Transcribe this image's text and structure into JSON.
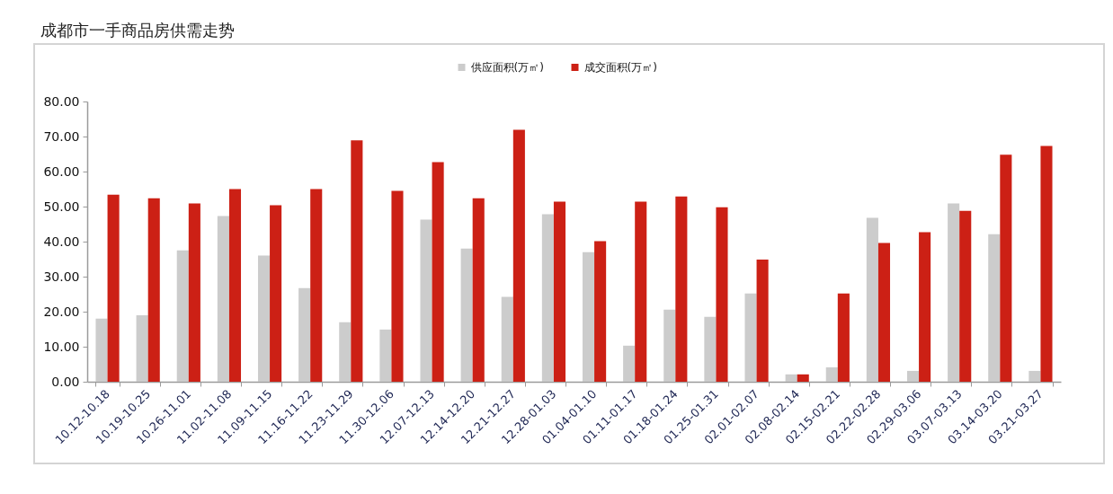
{
  "chart_data": {
    "type": "bar",
    "title": "成都市一手商品房供需走势",
    "categories": [
      "10.12-10.18",
      "10.19-10.25",
      "10.26-11.01",
      "11.02-11.08",
      "11.09-11.15",
      "11.16-11.22",
      "11.23-11.29",
      "11.30-12.06",
      "12.07-12.13",
      "12.14-12.20",
      "12.21-12.27",
      "12.28-01.03",
      "01.04-01.10",
      "01.11-01.17",
      "01.18-01.24",
      "01.25-01.31",
      "02.01-02.07",
      "02.08-02.14",
      "02.15-02.21",
      "02.22-02.28",
      "02.29-03.06",
      "03.07-03.13",
      "03.14-03.20",
      "03.21-03.27"
    ],
    "series": [
      {
        "name": "供应面积(万㎡)",
        "color": "#cccccc",
        "values": [
          18.0,
          19.0,
          37.5,
          47.3,
          36.0,
          26.7,
          17.0,
          14.9,
          46.3,
          38.0,
          24.2,
          47.8,
          37.0,
          10.3,
          20.6,
          18.5,
          25.2,
          2.1,
          4.1,
          46.8,
          3.1,
          50.9,
          42.1,
          3.1
        ]
      },
      {
        "name": "成交面积(万㎡)",
        "color": "#cc2015",
        "values": [
          53.4,
          52.4,
          50.9,
          55.0,
          50.4,
          55.0,
          68.9,
          54.5,
          62.7,
          52.4,
          71.9,
          51.4,
          40.1,
          51.4,
          52.9,
          49.8,
          34.9,
          2.1,
          25.2,
          39.6,
          42.7,
          48.8,
          64.8,
          67.3
        ]
      }
    ],
    "ylim": [
      0,
      80
    ],
    "yticks": [
      {
        "value": 0,
        "label": "0.00"
      },
      {
        "value": 10,
        "label": "10.00"
      },
      {
        "value": 20,
        "label": "20.00"
      },
      {
        "value": 30,
        "label": "30.00"
      },
      {
        "value": 40,
        "label": "40.00"
      },
      {
        "value": 50,
        "label": "50.00"
      },
      {
        "value": 60,
        "label": "60.00"
      },
      {
        "value": 70,
        "label": "70.00"
      },
      {
        "value": 80,
        "label": "80.00"
      }
    ],
    "legend": "top"
  }
}
